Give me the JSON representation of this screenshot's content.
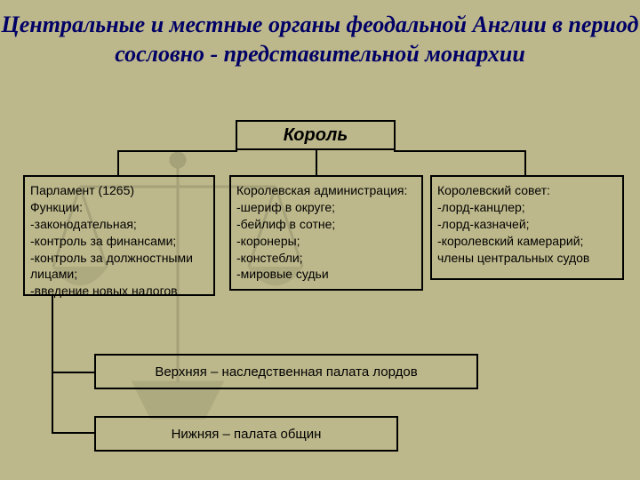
{
  "type": "flowchart",
  "background_color": "#bdb88b",
  "title": {
    "text": "Центральные и местные органы феодальной Англии в период сословно - представительной монархии",
    "color": "#000066",
    "font_family": "Times New Roman",
    "font_style": "italic bold",
    "font_size": 26
  },
  "root": {
    "label": "Король",
    "font_size": 20,
    "font_style": "italic bold",
    "border_color": "#000000"
  },
  "children": {
    "parliament": {
      "text": "Парламент (1265)\nФункции:\n-законодательная;\n-контроль за финансами;\n-контроль за должностными лицами;\n-введение новых налогов",
      "border_color": "#000000",
      "font_size": 14
    },
    "administration": {
      "text": "Королевская администрация:\n-шериф в округе;\n-бейлиф в сотне;\n-коронеры;\n-констебли;\n-мировые судьи",
      "border_color": "#000000",
      "font_size": 14
    },
    "council": {
      "text": "Королевский совет:\n-лорд-канцлер;\n-лорд-казначей;\n-королевский камерарий;\nчлены центральных судов",
      "border_color": "#000000",
      "font_size": 14
    }
  },
  "sub_children": {
    "upper": {
      "text": "Верхняя – наследственная палата лордов",
      "border_color": "#000000",
      "font_size": 15
    },
    "lower": {
      "text": "Нижняя – палата общин",
      "border_color": "#000000",
      "font_size": 15
    }
  },
  "line_color": "#000000",
  "watermark": {
    "type": "scales-of-justice",
    "opacity": 0.12,
    "color": "#000000"
  }
}
